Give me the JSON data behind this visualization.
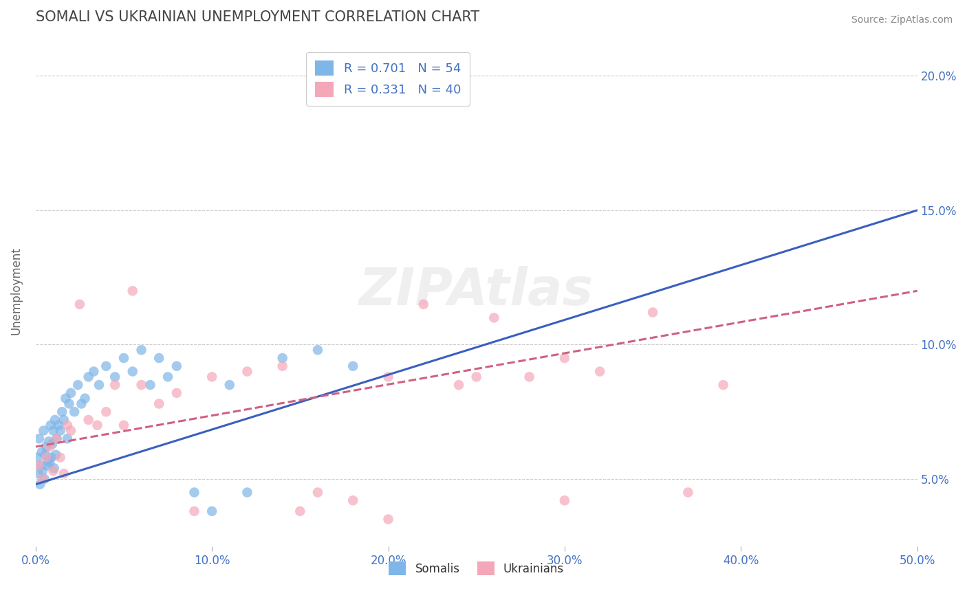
{
  "title": "SOMALI VS UKRAINIAN UNEMPLOYMENT CORRELATION CHART",
  "source": "Source: ZipAtlas.com",
  "ylabel": "Unemployment",
  "xlim": [
    0.0,
    50.0
  ],
  "ylim": [
    2.5,
    21.5
  ],
  "yticks": [
    5.0,
    10.0,
    15.0,
    20.0
  ],
  "xticks": [
    0.0,
    10.0,
    20.0,
    30.0,
    40.0,
    50.0
  ],
  "somali_R": 0.701,
  "somali_N": 54,
  "ukrainian_R": 0.331,
  "ukrainian_N": 40,
  "somali_color": "#7EB6E8",
  "ukrainian_color": "#F4A7B9",
  "somali_line_color": "#3A5FBF",
  "ukrainian_line_color": "#D06080",
  "background_color": "#FFFFFF",
  "somali_line_start": 4.8,
  "somali_line_end": 15.0,
  "ukrainian_line_start": 6.2,
  "ukrainian_line_end": 12.0,
  "somali_scatter_x": [
    0.1,
    0.15,
    0.2,
    0.25,
    0.3,
    0.35,
    0.4,
    0.45,
    0.5,
    0.55,
    0.6,
    0.65,
    0.7,
    0.75,
    0.8,
    0.85,
    0.9,
    0.95,
    1.0,
    1.05,
    1.1,
    1.15,
    1.2,
    1.3,
    1.4,
    1.5,
    1.6,
    1.7,
    1.8,
    1.9,
    2.0,
    2.2,
    2.4,
    2.6,
    2.8,
    3.0,
    3.3,
    3.6,
    4.0,
    4.5,
    5.0,
    5.5,
    6.0,
    6.5,
    7.0,
    7.5,
    8.0,
    9.0,
    10.0,
    11.0,
    12.0,
    14.0,
    16.0,
    18.0
  ],
  "somali_scatter_y": [
    5.8,
    5.2,
    6.5,
    4.8,
    5.5,
    6.0,
    5.3,
    6.8,
    5.0,
    5.9,
    6.2,
    5.5,
    5.7,
    6.4,
    5.6,
    7.0,
    5.8,
    6.3,
    6.8,
    5.4,
    7.2,
    5.9,
    6.5,
    7.0,
    6.8,
    7.5,
    7.2,
    8.0,
    6.5,
    7.8,
    8.2,
    7.5,
    8.5,
    7.8,
    8.0,
    8.8,
    9.0,
    8.5,
    9.2,
    8.8,
    9.5,
    9.0,
    9.8,
    8.5,
    9.5,
    8.8,
    9.2,
    4.5,
    3.8,
    8.5,
    4.5,
    9.5,
    9.8,
    9.2
  ],
  "ukrainian_scatter_x": [
    0.2,
    0.4,
    0.6,
    0.8,
    1.0,
    1.2,
    1.4,
    1.6,
    1.8,
    2.0,
    2.5,
    3.0,
    3.5,
    4.0,
    4.5,
    5.0,
    5.5,
    6.0,
    7.0,
    8.0,
    9.0,
    10.0,
    12.0,
    14.0,
    16.0,
    18.0,
    20.0,
    22.0,
    24.0,
    26.0,
    28.0,
    30.0,
    32.0,
    35.0,
    37.0,
    39.0,
    15.0,
    20.0,
    25.0,
    30.0
  ],
  "ukrainian_scatter_y": [
    5.5,
    5.0,
    5.8,
    6.2,
    5.3,
    6.5,
    5.8,
    5.2,
    7.0,
    6.8,
    11.5,
    7.2,
    7.0,
    7.5,
    8.5,
    7.0,
    12.0,
    8.5,
    7.8,
    8.2,
    3.8,
    8.8,
    9.0,
    9.2,
    4.5,
    4.2,
    8.8,
    11.5,
    8.5,
    11.0,
    8.8,
    9.5,
    9.0,
    11.2,
    4.5,
    8.5,
    3.8,
    3.5,
    8.8,
    4.2
  ]
}
